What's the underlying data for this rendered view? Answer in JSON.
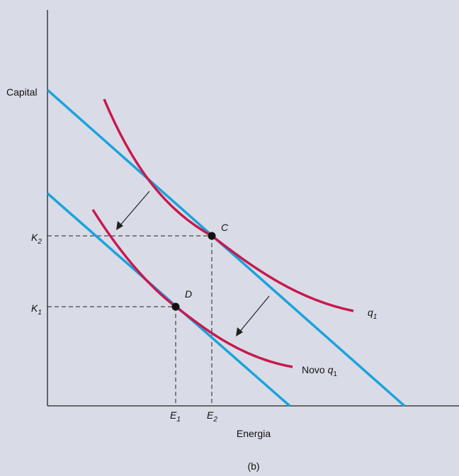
{
  "figure": {
    "ylabel": "Capital",
    "xlabel": "Energia",
    "caption": "(b)",
    "ticks": {
      "k2_base": "K",
      "k2_sub": "2",
      "k1_base": "K",
      "k1_sub": "1",
      "e1_base": "E",
      "e1_sub": "1",
      "e2_base": "E",
      "e2_sub": "2"
    },
    "points": {
      "c": "C",
      "d": "D"
    },
    "curves": {
      "q1_base": "q",
      "q1_sub": "1",
      "novo_prefix": "Novo ",
      "novo_base": "q",
      "novo_sub": "1"
    },
    "colors": {
      "background": "#d9dce6",
      "isocost": "#1ba3dc",
      "isoquant": "#c8194f",
      "axis": "#222222"
    }
  }
}
